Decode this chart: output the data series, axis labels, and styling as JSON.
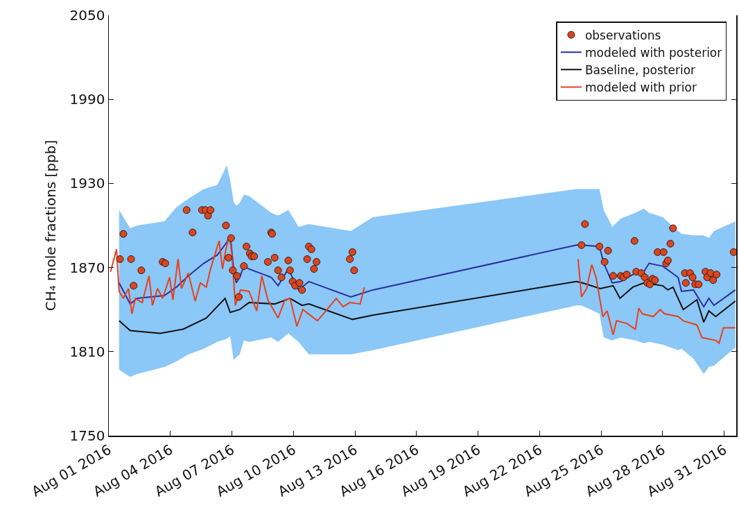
{
  "chart_data": {
    "type": "line",
    "ylabel": "CH₄ mole fractions [ppb]",
    "xlim": [
      "2016-08-01",
      "2016-08-31T14:00"
    ],
    "xticks": [
      {
        "value": "2016-08-01",
        "label": "Aug 01 2016"
      },
      {
        "value": "2016-08-04",
        "label": "Aug 04 2016"
      },
      {
        "value": "2016-08-07",
        "label": "Aug 07 2016"
      },
      {
        "value": "2016-08-10",
        "label": "Aug 10 2016"
      },
      {
        "value": "2016-08-13",
        "label": "Aug 13 2016"
      },
      {
        "value": "2016-08-16",
        "label": "Aug 16 2016"
      },
      {
        "value": "2016-08-19",
        "label": "Aug 19 2016"
      },
      {
        "value": "2016-08-22",
        "label": "Aug 22 2016"
      },
      {
        "value": "2016-08-25",
        "label": "Aug 25 2016"
      },
      {
        "value": "2016-08-28",
        "label": "Aug 28 2016"
      },
      {
        "value": "2016-08-31",
        "label": "Aug 31 2016"
      }
    ],
    "ylim": [
      1750,
      2050
    ],
    "yticks": [
      1750,
      1810,
      1870,
      1930,
      1990,
      2050
    ],
    "grid": false,
    "legend": "top right",
    "series": [
      {
        "name": "observations",
        "type": "scatter",
        "marker": "circle",
        "color": "#d9461f",
        "x": [
          "2016-08-01T13:00",
          "2016-08-01T17:00",
          "2016-08-02T02:00",
          "2016-08-02T05:00",
          "2016-08-02T14:00",
          "2016-08-03T15:00",
          "2016-08-03T18:00",
          "2016-08-04T19:00",
          "2016-08-05T02:00",
          "2016-08-05T13:00",
          "2016-08-05T17:00",
          "2016-08-05T20:00",
          "2016-08-05T23:00",
          "2016-08-06T17:00",
          "2016-08-06T20:00",
          "2016-08-06T23:00",
          "2016-08-07T01:00",
          "2016-08-07T06:00",
          "2016-08-07T08:00",
          "2016-08-07T14:00",
          "2016-08-07T17:00",
          "2016-08-07T21:00",
          "2016-08-07T23:00",
          "2016-08-08T02:00",
          "2016-08-08T18:00",
          "2016-08-08T22:00",
          "2016-08-08T23:00",
          "2016-08-09T02:00",
          "2016-08-09T06:00",
          "2016-08-09T10:00",
          "2016-08-09T18:00",
          "2016-08-09T20:00",
          "2016-08-09T23:00",
          "2016-08-10T02:00",
          "2016-08-10T07:00",
          "2016-08-10T10:00",
          "2016-08-10T16:00",
          "2016-08-10T18:00",
          "2016-08-10T21:00",
          "2016-08-11T00:00",
          "2016-08-11T03:00",
          "2016-08-12T18:00",
          "2016-08-12T21:00",
          "2016-08-12T23:00",
          "2016-08-24T01:00",
          "2016-08-24T05:00",
          "2016-08-24T22:00",
          "2016-08-25T04:00",
          "2016-08-25T08:00",
          "2016-08-25T14:00",
          "2016-08-25T23:00",
          "2016-08-26T02:00",
          "2016-08-26T06:00",
          "2016-08-26T15:00",
          "2016-08-26T17:00",
          "2016-08-26T23:00",
          "2016-08-27T03:00",
          "2016-08-27T06:00",
          "2016-08-27T09:00",
          "2016-08-27T12:00",
          "2016-08-27T15:00",
          "2016-08-27T18:00",
          "2016-08-28T01:00",
          "2016-08-28T04:00",
          "2016-08-28T06:00",
          "2016-08-28T09:00",
          "2016-08-28T12:00",
          "2016-08-29T02:00",
          "2016-08-29T03:00",
          "2016-08-29T08:00",
          "2016-08-29T11:00",
          "2016-08-29T14:00",
          "2016-08-29T18:00",
          "2016-08-30T02:00",
          "2016-08-30T04:00",
          "2016-08-30T08:00",
          "2016-08-30T11:00",
          "2016-08-30T15:00",
          "2016-08-31T11:00"
        ],
        "values": [
          1876,
          1894,
          1876,
          1857,
          1868,
          1874,
          1873,
          1911,
          1895,
          1911,
          1911,
          1907,
          1911,
          1900,
          1877,
          1891,
          1868,
          1864,
          1849,
          1871,
          1885,
          1880,
          1878,
          1878,
          1874,
          1895,
          1894,
          1877,
          1868,
          1863,
          1875,
          1868,
          1860,
          1857,
          1859,
          1854,
          1876,
          1885,
          1883,
          1869,
          1874,
          1876,
          1881,
          1868,
          1886,
          1901,
          1885,
          1874,
          1882,
          1864,
          1864,
          1863,
          1865,
          1889,
          1867,
          1866,
          1863,
          1859,
          1858,
          1862,
          1861,
          1881,
          1881,
          1873,
          1875,
          1887,
          1898,
          1866,
          1859,
          1866,
          1863,
          1858,
          1858,
          1867,
          1863,
          1866,
          1861,
          1865,
          1881
        ]
      },
      {
        "name": "modeled with posterior",
        "color": "#2b2f9e",
        "x": [
          "2016-08-01T12:00",
          "2016-08-02T01:00",
          "2016-08-02T09:00",
          "2016-08-03T17:00",
          "2016-08-04T07:00",
          "2016-08-04T21:00",
          "2016-08-05T15:00",
          "2016-08-06T07:00",
          "2016-08-06T18:00",
          "2016-08-06T22:00",
          "2016-08-07T02:00",
          "2016-08-07T05:00",
          "2016-08-07T09:00",
          "2016-08-07T14:00",
          "2016-08-07T20:00",
          "2016-08-08T22:00",
          "2016-08-09T06:00",
          "2016-08-09T18:00",
          "2016-08-10T06:00",
          "2016-08-10T18:00",
          "2016-08-12T19:00",
          "2016-08-13T21:00",
          "2016-08-23T19:00",
          "2016-08-24T01:00",
          "2016-08-24T22:00",
          "2016-08-25T03:00",
          "2016-08-25T13:00",
          "2016-08-25T23:00",
          "2016-08-26T16:00",
          "2016-08-27T02:00",
          "2016-08-27T08:00",
          "2016-08-28T00:00",
          "2016-08-28T18:00",
          "2016-08-28T22:00",
          "2016-08-29T12:00",
          "2016-08-30T00:00",
          "2016-08-30T06:00",
          "2016-08-30T12:00",
          "2016-08-31T13:00"
        ],
        "values": [
          1859,
          1844,
          1848,
          1850,
          1856,
          1864,
          1873,
          1879,
          1888,
          1893,
          1869,
          1859,
          1863,
          1871,
          1869,
          1863,
          1857,
          1869,
          1854,
          1860,
          1849,
          1854,
          1886,
          1886,
          1885,
          1873,
          1859,
          1860,
          1866,
          1867,
          1873,
          1871,
          1863,
          1853,
          1854,
          1842,
          1848,
          1843,
          1854
        ],
        "lower": [
          1797,
          1792,
          1794,
          1799,
          1803,
          1808,
          1812,
          1817,
          1819,
          1821,
          1804,
          1806,
          1808,
          1818,
          1817,
          1820,
          1817,
          1823,
          1817,
          1808,
          1808,
          1811,
          1843,
          1843,
          1837,
          1820,
          1818,
          1820,
          1818,
          1816,
          1817,
          1815,
          1811,
          1812,
          1805,
          1794,
          1799,
          1800,
          1813
        ],
        "upper": [
          1911,
          1898,
          1900,
          1903,
          1913,
          1919,
          1926,
          1929,
          1943,
          1932,
          1917,
          1914,
          1916,
          1922,
          1921,
          1909,
          1907,
          1911,
          1899,
          1901,
          1896,
          1906,
          1926,
          1926,
          1926,
          1911,
          1899,
          1905,
          1909,
          1912,
          1909,
          1906,
          1896,
          1894,
          1893,
          1893,
          1891,
          1896,
          1903
        ]
      },
      {
        "name": "Baseline, posterior",
        "color": "#111111",
        "x": [
          "2016-08-01T12:00",
          "2016-08-02T01:00",
          "2016-08-03T12:00",
          "2016-08-04T15:00",
          "2016-08-05T18:00",
          "2016-08-06T16:00",
          "2016-08-06T22:00",
          "2016-08-07T09:00",
          "2016-08-07T20:00",
          "2016-08-09T02:00",
          "2016-08-09T20:00",
          "2016-08-10T10:00",
          "2016-08-10T18:00",
          "2016-08-12T21:00",
          "2016-08-13T21:00",
          "2016-08-23T19:00",
          "2016-08-24T02:00",
          "2016-08-24T23:00",
          "2016-08-25T14:00",
          "2016-08-25T22:00",
          "2016-08-26T13:00",
          "2016-08-27T02:00",
          "2016-08-28T00:00",
          "2016-08-28T06:00",
          "2016-08-28T12:00",
          "2016-08-29T00:00",
          "2016-08-29T16:00",
          "2016-08-30T00:00",
          "2016-08-30T06:00",
          "2016-08-30T14:00",
          "2016-08-31T13:00"
        ],
        "values": [
          1832,
          1825,
          1823,
          1826,
          1834,
          1848,
          1838,
          1840,
          1845,
          1844,
          1848,
          1843,
          1844,
          1833,
          1836,
          1860,
          1859,
          1855,
          1857,
          1848,
          1856,
          1859,
          1857,
          1854,
          1856,
          1840,
          1847,
          1831,
          1839,
          1835,
          1846
        ]
      },
      {
        "name": "modeled with prior",
        "color": "#e8401c",
        "x": [
          "2016-08-01T02:00",
          "2016-08-01T09:00",
          "2016-08-01T12:00",
          "2016-08-01T17:00",
          "2016-08-01T23:00",
          "2016-08-02T03:00",
          "2016-08-02T07:00",
          "2016-08-02T15:00",
          "2016-08-02T23:00",
          "2016-08-03T03:00",
          "2016-08-03T09:00",
          "2016-08-03T15:00",
          "2016-08-03T23:00",
          "2016-08-04T03:00",
          "2016-08-04T09:00",
          "2016-08-04T13:00",
          "2016-08-04T21:00",
          "2016-08-05T05:00",
          "2016-08-05T11:00",
          "2016-08-05T18:00",
          "2016-08-05T23:00",
          "2016-08-06T09:00",
          "2016-08-06T13:00",
          "2016-08-06T17:00",
          "2016-08-06T21:00",
          "2016-08-07T00:00",
          "2016-08-07T04:00",
          "2016-08-07T10:00",
          "2016-08-07T20:00",
          "2016-08-08T05:00",
          "2016-08-08T11:00",
          "2016-08-08T18:00",
          "2016-08-09T06:00",
          "2016-08-09T14:00",
          "2016-08-09T20:00",
          "2016-08-10T04:00",
          "2016-08-10T11:00",
          "2016-08-11T04:00",
          "2016-08-11T14:00",
          "2016-08-12T02:00",
          "2016-08-12T10:00",
          "2016-08-12T18:00",
          "2016-08-13T06:00",
          "2016-08-13T11:00",
          "2016-08-18T00:00",
          "2016-08-23T21:00",
          "2016-08-24T01:00",
          "2016-08-24T07:00",
          "2016-08-24T13:00",
          "2016-08-24T18:00",
          "2016-08-25T02:00",
          "2016-08-25T07:00",
          "2016-08-25T14:00",
          "2016-08-25T18:00",
          "2016-08-26T06:00",
          "2016-08-26T16:00",
          "2016-08-26T20:00",
          "2016-08-27T00:00",
          "2016-08-27T13:00",
          "2016-08-27T21:00",
          "2016-08-28T02:00",
          "2016-08-28T18:00",
          "2016-08-29T00:00",
          "2016-08-29T16:00",
          "2016-08-29T22:00",
          "2016-08-30T14:00",
          "2016-08-30T18:00",
          "2016-08-30T23:00",
          "2016-08-31T13:00"
        ],
        "values": [
          1867,
          1883,
          1853,
          1848,
          1855,
          1837,
          1848,
          1845,
          1864,
          1843,
          1855,
          1848,
          1863,
          1847,
          1876,
          1855,
          1866,
          1846,
          1859,
          1856,
          1869,
          1889,
          1869,
          1883,
          1893,
          1879,
          1843,
          1854,
          1853,
          1839,
          1864,
          1847,
          1834,
          1847,
          1848,
          1828,
          1840,
          1832,
          1839,
          1848,
          1842,
          1845,
          1844,
          1856,
          null,
          1876,
          1849,
          1855,
          1872,
          1863,
          1835,
          1839,
          1822,
          1832,
          1830,
          1826,
          1841,
          1837,
          1835,
          1840,
          1837,
          1835,
          1832,
          1829,
          1820,
          1818,
          1816,
          1827,
          1827
        ]
      }
    ]
  }
}
